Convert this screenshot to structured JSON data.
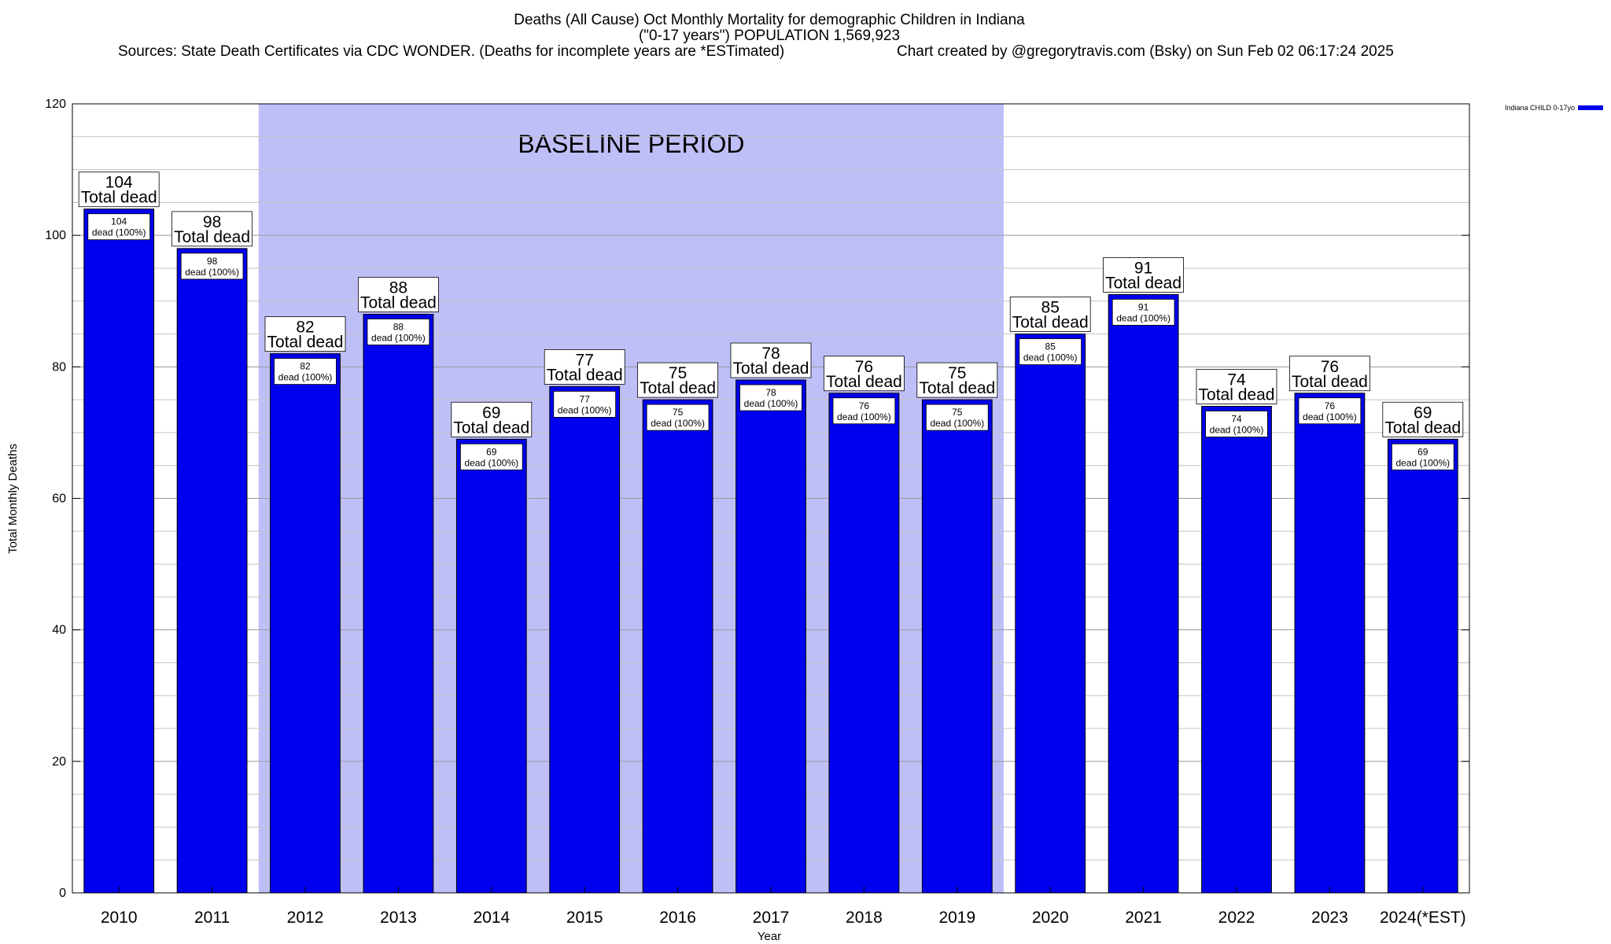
{
  "chart_data": {
    "type": "bar",
    "title": "Deaths (All Cause) Oct Monthly Mortality for demographic Children in Indiana",
    "subtitle": "(\"0-17 years\") POPULATION 1,569,923",
    "sources": "Sources: State Death Certificates via CDC WONDER. (Deaths for incomplete years are *ESTimated)",
    "credit": "Chart created by @gregorytravis.com (Bsky) on Sun Feb 02 06:17:24 2025",
    "xlabel": "Year",
    "ylabel": "Total Monthly Deaths",
    "categories": [
      "2010",
      "2011",
      "2012",
      "2013",
      "2014",
      "2015",
      "2016",
      "2017",
      "2018",
      "2019",
      "2020",
      "2021",
      "2022",
      "2023",
      "2024(*EST)"
    ],
    "series": [
      {
        "name": "Indiana CHILD 0-17yo",
        "values": [
          104,
          98,
          82,
          88,
          69,
          77,
          75,
          78,
          76,
          75,
          85,
          91,
          74,
          76,
          69
        ]
      }
    ],
    "ylim": [
      0,
      120
    ],
    "yticks": [
      0,
      20,
      40,
      60,
      80,
      100,
      120
    ],
    "grid": true,
    "legend_position": "top-right",
    "bar_color": "#0000ee",
    "baseline_color": "#bfbff8",
    "baseline": {
      "label": "BASELINE PERIOD",
      "from": "2012",
      "to": "2019"
    },
    "total_label": "Total dead",
    "inner_label": "dead (100%)"
  }
}
